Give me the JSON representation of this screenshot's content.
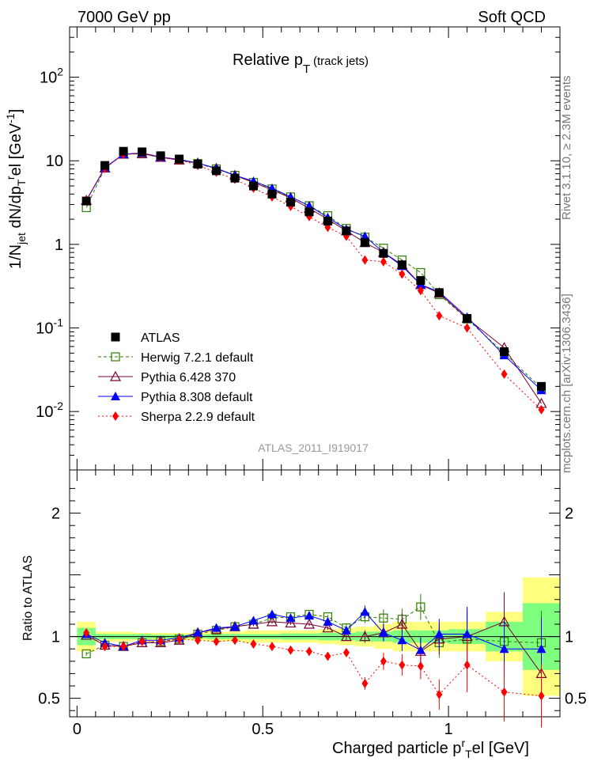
{
  "header": {
    "left": "7000 GeV pp",
    "right": "Soft QCD",
    "plot_title_main": "Relative p",
    "plot_title_sub": "T",
    "plot_title_rest": " (track jets)",
    "analysis_id": "ATLAS_2011_I919017"
  },
  "side": {
    "rivet": "Rivet 3.1.10, ≥ 2.3M events",
    "mcplots": "mcplots.cern.ch [arXiv:1306.3436]"
  },
  "colors": {
    "ATLAS": "#000000",
    "Herwig": "#2e7d00",
    "Pythia6": "#7a0030",
    "Pythia8": "#0000ff",
    "Sherpa": "#ff0000",
    "band_yellow": "#ffff7f",
    "band_green": "#7fff7f"
  },
  "chart_data": [
    {
      "type": "scatter",
      "title": "Relative p_T (track jets)",
      "xlabel": "Charged particle p_T^rel [GeV]",
      "ylabel": "1/N_jet dN/dp_T^rel [GeV^-1]",
      "yscale": "log",
      "xlim": [
        -0.02,
        1.3
      ],
      "ylim": [
        0.002,
        400
      ],
      "ytick_labels": [
        "10^-2",
        "10^-1",
        "1",
        "10",
        "10^2"
      ],
      "legend_position": "lower-left",
      "x": [
        0.025,
        0.075,
        0.125,
        0.175,
        0.225,
        0.275,
        0.325,
        0.375,
        0.425,
        0.475,
        0.525,
        0.575,
        0.625,
        0.675,
        0.725,
        0.775,
        0.825,
        0.875,
        0.925,
        0.975,
        1.05,
        1.15,
        1.25
      ],
      "series": [
        {
          "name": "ATLAS",
          "values": [
            3.3,
            8.8,
            13.0,
            12.8,
            11.5,
            10.5,
            9.1,
            7.6,
            6.2,
            5.0,
            4.0,
            3.2,
            2.45,
            1.9,
            1.45,
            1.05,
            0.78,
            0.57,
            0.37,
            0.265,
            0.13,
            0.052,
            0.02
          ]
        },
        {
          "name": "Herwig 7.2.1 default",
          "values": [
            2.75,
            8.2,
            12.0,
            12.1,
            11.0,
            10.2,
            9.3,
            8.0,
            6.7,
            5.5,
            4.6,
            3.7,
            2.9,
            2.2,
            1.55,
            1.22,
            0.9,
            0.65,
            0.46,
            0.25,
            0.128,
            0.05,
            0.019
          ]
        },
        {
          "name": "Pythia 6.428 370",
          "values": [
            3.35,
            8.2,
            12.0,
            12.2,
            11.0,
            10.2,
            9.4,
            8.1,
            6.7,
            5.5,
            4.5,
            3.6,
            2.7,
            2.0,
            1.45,
            1.05,
            0.8,
            0.57,
            0.33,
            0.26,
            0.13,
            0.058,
            0.0125
          ]
        },
        {
          "name": "Pythia 8.308 default",
          "values": [
            3.35,
            8.3,
            12.0,
            12.4,
            11.1,
            10.4,
            9.4,
            8.1,
            6.7,
            5.7,
            4.7,
            3.7,
            2.9,
            2.1,
            1.52,
            1.25,
            0.8,
            0.55,
            0.33,
            0.27,
            0.135,
            0.047,
            0.018
          ]
        },
        {
          "name": "Sherpa 2.2.9 default",
          "values": [
            3.4,
            8.1,
            12.0,
            12.4,
            11.1,
            10.3,
            8.8,
            7.3,
            6.0,
            4.7,
            3.7,
            2.85,
            2.15,
            1.6,
            1.25,
            0.65,
            0.62,
            0.44,
            0.28,
            0.14,
            0.1,
            0.028,
            0.0105
          ]
        }
      ]
    },
    {
      "type": "line",
      "xlabel": "Charged particle p_T^rel [GeV]",
      "ylabel": "Ratio to ATLAS",
      "xlim": [
        -0.02,
        1.3
      ],
      "ylim": [
        0.35,
        2.35
      ],
      "ytick_labels": [
        "0.5",
        "1",
        "2"
      ],
      "xtick_labels": [
        "0",
        "0.5",
        "1"
      ],
      "series": [
        {
          "name": "Herwig 7.2.1 default",
          "values": [
            0.86,
            0.93,
            0.92,
            0.95,
            0.96,
            0.98,
            1.02,
            1.05,
            1.08,
            1.1,
            1.15,
            1.16,
            1.18,
            1.16,
            1.07,
            1.16,
            1.15,
            1.14,
            1.24,
            0.95,
            0.98,
            0.96,
            0.95
          ]
        },
        {
          "name": "Pythia 6.428 370",
          "values": [
            1.01,
            0.93,
            0.92,
            0.95,
            0.95,
            0.97,
            1.03,
            1.06,
            1.08,
            1.1,
            1.12,
            1.11,
            1.1,
            1.07,
            1.0,
            1.0,
            1.03,
            1.1,
            0.88,
            0.98,
            1.0,
            1.12,
            0.7
          ]
        },
        {
          "name": "Pythia 8.308 default",
          "values": [
            1.02,
            0.95,
            0.92,
            0.97,
            0.97,
            0.99,
            1.03,
            1.07,
            1.08,
            1.13,
            1.18,
            1.15,
            1.17,
            1.12,
            1.05,
            1.2,
            1.03,
            0.97,
            0.89,
            1.02,
            1.02,
            0.9,
            0.9
          ]
        },
        {
          "name": "Sherpa 2.2.9 default",
          "values": [
            1.03,
            0.92,
            0.92,
            0.96,
            0.96,
            0.98,
            0.97,
            0.96,
            0.97,
            0.94,
            0.92,
            0.89,
            0.88,
            0.84,
            0.87,
            0.62,
            0.8,
            0.77,
            0.76,
            0.53,
            0.77,
            0.55,
            0.52
          ]
        }
      ],
      "band_yellow": [
        [
          0.88,
          1.12
        ],
        [
          0.96,
          1.04
        ],
        [
          0.96,
          1.04
        ],
        [
          0.97,
          1.03
        ],
        [
          0.97,
          1.03
        ],
        [
          0.97,
          1.03
        ],
        [
          0.97,
          1.03
        ],
        [
          0.96,
          1.04
        ],
        [
          0.96,
          1.04
        ],
        [
          0.95,
          1.05
        ],
        [
          0.95,
          1.05
        ],
        [
          0.95,
          1.05
        ],
        [
          0.95,
          1.05
        ],
        [
          0.94,
          1.06
        ],
        [
          0.93,
          1.07
        ],
        [
          0.92,
          1.08
        ],
        [
          0.9,
          1.1
        ],
        [
          0.88,
          1.12
        ],
        [
          0.88,
          1.12
        ],
        [
          0.88,
          1.12
        ],
        [
          0.88,
          1.12
        ],
        [
          0.8,
          1.2
        ],
        [
          0.52,
          1.48
        ]
      ],
      "band_green": [
        [
          0.93,
          1.07
        ],
        [
          0.98,
          1.02
        ],
        [
          0.98,
          1.02
        ],
        [
          0.98,
          1.02
        ],
        [
          0.985,
          1.015
        ],
        [
          0.985,
          1.015
        ],
        [
          0.985,
          1.015
        ],
        [
          0.98,
          1.02
        ],
        [
          0.98,
          1.02
        ],
        [
          0.98,
          1.02
        ],
        [
          0.98,
          1.02
        ],
        [
          0.975,
          1.025
        ],
        [
          0.975,
          1.025
        ],
        [
          0.97,
          1.03
        ],
        [
          0.97,
          1.03
        ],
        [
          0.96,
          1.04
        ],
        [
          0.96,
          1.04
        ],
        [
          0.95,
          1.05
        ],
        [
          0.95,
          1.05
        ],
        [
          0.95,
          1.05
        ],
        [
          0.94,
          1.06
        ],
        [
          0.88,
          1.12
        ],
        [
          0.73,
          1.27
        ]
      ]
    }
  ]
}
